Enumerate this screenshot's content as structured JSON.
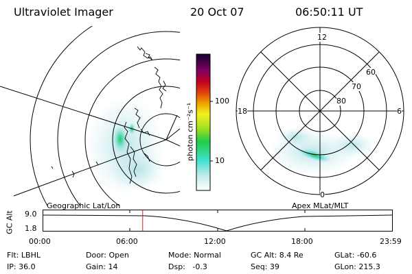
{
  "header": {
    "instrument": "Ultraviolet Imager",
    "date": "20 Oct 07",
    "time": "06:50:11 UT"
  },
  "colorbar": {
    "unit_label": "photon cm⁻²s⁻¹",
    "ticks": [
      "100",
      "10"
    ]
  },
  "polar_plot": {
    "mlt_labels": {
      "top": "12",
      "left": "18",
      "right": "6",
      "bottom": "0"
    },
    "lat_labels": [
      "60",
      "70",
      "80"
    ]
  },
  "panel_labels": {
    "left": "Geographic Lat/Lon",
    "right": "Apex MLat/MLT"
  },
  "altitude_strip": {
    "ylabel": "GC Alt",
    "y_ticks": [
      "9.0",
      "1.8"
    ],
    "x_ticks": [
      "00:00",
      "06:00",
      "12:00",
      "18:00",
      "23:59"
    ],
    "current_time_fraction": 0.285
  },
  "info": {
    "filter": "Flt: LBHL",
    "door": "Door: Open",
    "mode": "Mode: Normal",
    "gc_alt": "GC Alt: 8.4 Re",
    "glat": "GLat: -60.6",
    "ip": "IP: 36.0",
    "gain": "Gain: 14",
    "dsp": "Dsp:   -0.3",
    "seq": "Seq: 39",
    "glon": "GLon: 215.3"
  },
  "colors": {
    "foreground": "#000000",
    "time_marker": "#cc2020",
    "background": "#ffffff"
  }
}
